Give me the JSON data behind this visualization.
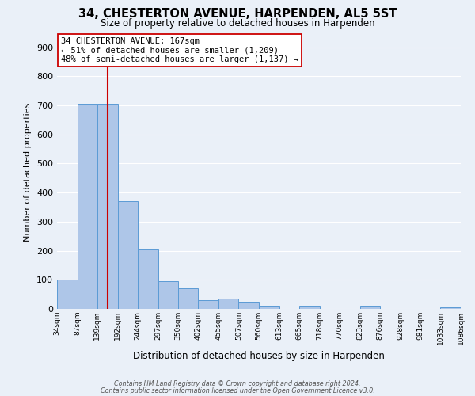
{
  "title": "34, CHESTERTON AVENUE, HARPENDEN, AL5 5ST",
  "subtitle": "Size of property relative to detached houses in Harpenden",
  "xlabel": "Distribution of detached houses by size in Harpenden",
  "ylabel": "Number of detached properties",
  "bar_color": "#aec6e8",
  "bar_edge_color": "#5b9bd5",
  "background_color": "#eaf0f8",
  "grid_color": "#ffffff",
  "vline_x": 167,
  "vline_color": "#cc0000",
  "bin_edges": [
    34,
    87,
    139,
    192,
    244,
    297,
    350,
    402,
    455,
    507,
    560,
    613,
    665,
    718,
    770,
    823,
    876,
    928,
    981,
    1033,
    1086
  ],
  "bar_heights": [
    100,
    705,
    705,
    370,
    205,
    95,
    70,
    30,
    35,
    25,
    10,
    0,
    10,
    0,
    0,
    10,
    0,
    0,
    0,
    5
  ],
  "tick_labels": [
    "34sqm",
    "87sqm",
    "139sqm",
    "192sqm",
    "244sqm",
    "297sqm",
    "350sqm",
    "402sqm",
    "455sqm",
    "507sqm",
    "560sqm",
    "613sqm",
    "665sqm",
    "718sqm",
    "770sqm",
    "823sqm",
    "876sqm",
    "928sqm",
    "981sqm",
    "1033sqm",
    "1086sqm"
  ],
  "ylim": [
    0,
    940
  ],
  "yticks": [
    0,
    100,
    200,
    300,
    400,
    500,
    600,
    700,
    800,
    900
  ],
  "annotation_title": "34 CHESTERTON AVENUE: 167sqm",
  "annotation_line1": "← 51% of detached houses are smaller (1,209)",
  "annotation_line2": "48% of semi-detached houses are larger (1,137) →",
  "annotation_box_color": "#ffffff",
  "annotation_box_edge": "#cc0000",
  "footer1": "Contains HM Land Registry data © Crown copyright and database right 2024.",
  "footer2": "Contains public sector information licensed under the Open Government Licence v3.0."
}
